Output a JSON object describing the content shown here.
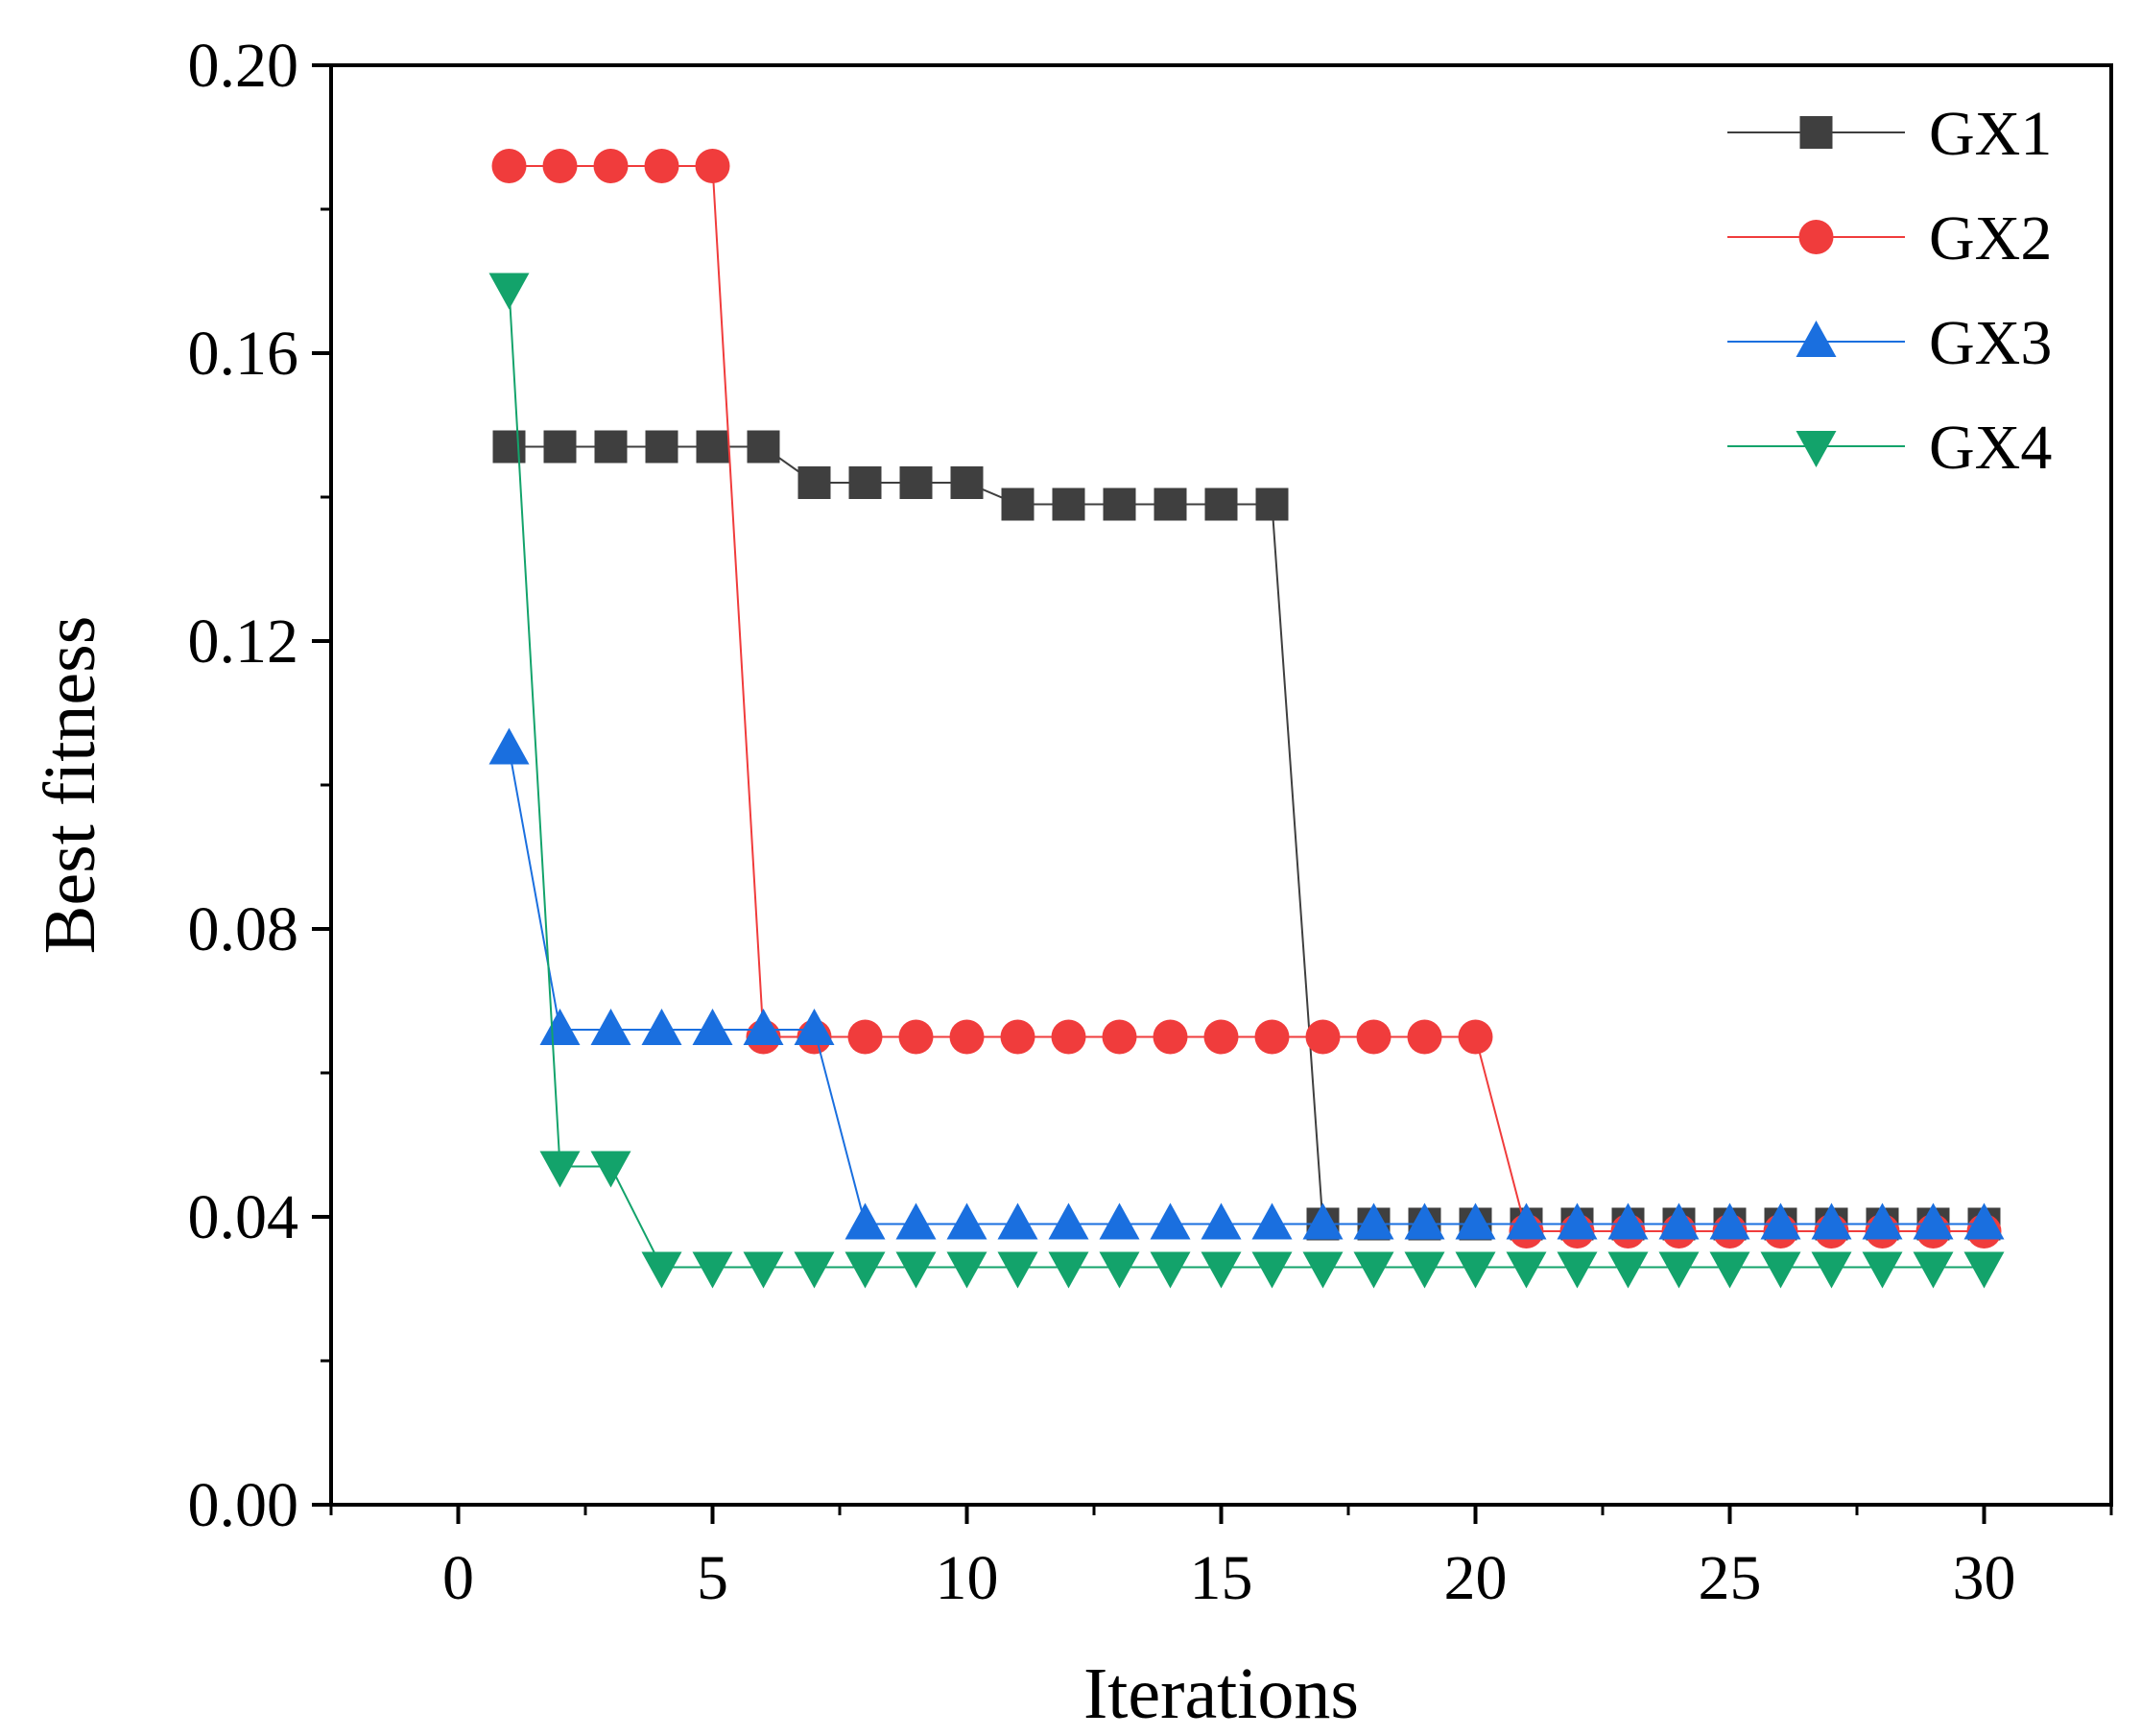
{
  "chart_data": {
    "type": "line",
    "title": "",
    "xlabel": "Iterations",
    "ylabel": "Best fitness",
    "xlim": [
      -2.5,
      32.5
    ],
    "ylim": [
      0.0,
      0.2
    ],
    "xticks": [
      0,
      5,
      10,
      15,
      20,
      25,
      30
    ],
    "xtick_labels": [
      "0",
      "5",
      "10",
      "15",
      "20",
      "25",
      "30"
    ],
    "yticks": [
      0.0,
      0.04,
      0.08,
      0.12,
      0.16,
      0.2
    ],
    "ytick_labels": [
      "0.00",
      "0.04",
      "0.08",
      "0.12",
      "0.16",
      "0.20"
    ],
    "legend_position": "top-right",
    "x": [
      1,
      2,
      3,
      4,
      5,
      6,
      7,
      8,
      9,
      10,
      11,
      12,
      13,
      14,
      15,
      16,
      17,
      18,
      19,
      20,
      21,
      22,
      23,
      24,
      25,
      26,
      27,
      28,
      29,
      30
    ],
    "series": [
      {
        "name": "GX1",
        "marker": "square",
        "color": "#3f3f3f",
        "values": [
          0.147,
          0.147,
          0.147,
          0.147,
          0.147,
          0.147,
          0.142,
          0.142,
          0.142,
          0.142,
          0.139,
          0.139,
          0.139,
          0.139,
          0.139,
          0.139,
          0.039,
          0.039,
          0.039,
          0.039,
          0.039,
          0.039,
          0.039,
          0.039,
          0.039,
          0.039,
          0.039,
          0.039,
          0.039,
          0.039
        ]
      },
      {
        "name": "GX2",
        "marker": "circle",
        "color": "#f03c3c",
        "values": [
          0.186,
          0.186,
          0.186,
          0.186,
          0.186,
          0.065,
          0.065,
          0.065,
          0.065,
          0.065,
          0.065,
          0.065,
          0.065,
          0.065,
          0.065,
          0.065,
          0.065,
          0.065,
          0.065,
          0.065,
          0.038,
          0.038,
          0.038,
          0.038,
          0.038,
          0.038,
          0.038,
          0.038,
          0.038,
          0.038
        ]
      },
      {
        "name": "GX3",
        "marker": "triangle-up",
        "color": "#1a6fdf",
        "values": [
          0.105,
          0.066,
          0.066,
          0.066,
          0.066,
          0.066,
          0.066,
          0.039,
          0.039,
          0.039,
          0.039,
          0.039,
          0.039,
          0.039,
          0.039,
          0.039,
          0.039,
          0.039,
          0.039,
          0.039,
          0.039,
          0.039,
          0.039,
          0.039,
          0.039,
          0.039,
          0.039,
          0.039,
          0.039,
          0.039
        ]
      },
      {
        "name": "GX4",
        "marker": "triangle-down",
        "color": "#13a36b",
        "values": [
          0.169,
          0.047,
          0.047,
          0.033,
          0.033,
          0.033,
          0.033,
          0.033,
          0.033,
          0.033,
          0.033,
          0.033,
          0.033,
          0.033,
          0.033,
          0.033,
          0.033,
          0.033,
          0.033,
          0.033,
          0.033,
          0.033,
          0.033,
          0.033,
          0.033,
          0.033,
          0.033,
          0.033,
          0.033,
          0.033
        ]
      }
    ]
  }
}
